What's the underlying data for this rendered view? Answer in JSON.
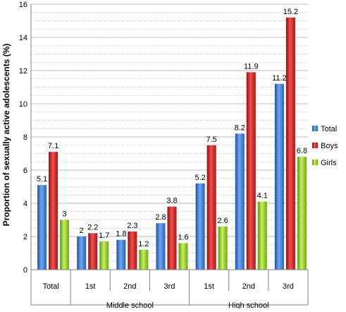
{
  "chart_data": {
    "type": "bar",
    "ylabel": "Proportion of sexually active adolescents (%)",
    "ylim": [
      0,
      16
    ],
    "yticks": [
      "0",
      "2",
      "4",
      "6",
      "8",
      "10",
      "12",
      "14",
      "16"
    ],
    "grid": true,
    "minor_grid_step": 0.5,
    "legend_position": "right",
    "categories": [
      "Total",
      "1st",
      "2nd",
      "3rd",
      "1st",
      "2nd",
      "3rd"
    ],
    "groups": [
      {
        "label": "Middle school",
        "categories": [
          "1st",
          "2nd",
          "3rd"
        ]
      },
      {
        "label": "High school",
        "categories": [
          "1st",
          "2nd",
          "3rd"
        ]
      }
    ],
    "series": [
      {
        "name": "Total",
        "color": "#3a78d8",
        "values": [
          5.1,
          2,
          1.8,
          2.8,
          5.2,
          8.2,
          11.2
        ]
      },
      {
        "name": "Boys",
        "color": "#d42020",
        "values": [
          7.1,
          2.2,
          2.3,
          3.8,
          7.5,
          11.9,
          15.2
        ]
      },
      {
        "name": "Girls",
        "color": "#8ccc1c",
        "values": [
          3,
          1.7,
          1.2,
          1.6,
          2.6,
          4.1,
          6.8
        ]
      }
    ],
    "data_labels": [
      [
        "5.1",
        "2",
        "1.8",
        "2.8",
        "5.2",
        "8.2",
        "11.2"
      ],
      [
        "7.1",
        "2.2",
        "2.3",
        "3.8",
        "7.5",
        "11.9",
        "15.2"
      ],
      [
        "3",
        "1.7",
        "1.2",
        "1.6",
        "2.6",
        "4.1",
        "6.8"
      ]
    ]
  }
}
